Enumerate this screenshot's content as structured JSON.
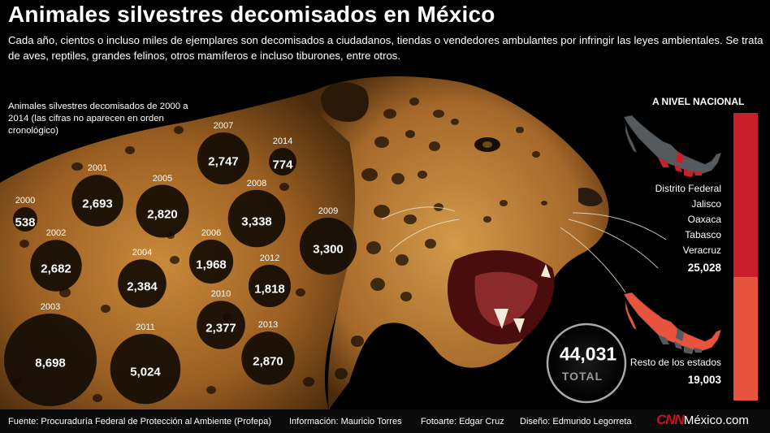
{
  "title": "Animales silvestres decomisados en México",
  "subtitle": "Cada año, cientos o incluso miles de ejemplares son decomisados a ciudadanos, tiendas o vendedores ambulantes por infringir las leyes ambientales. Se trata de aves, reptiles, grandes felinos, otros mamíferos e incluso tiburones, entre otros.",
  "intro": "Animales silvestres decomisados de 2000 a 2014 (las cifras no aparecen en orden cronológico)",
  "chart_data": {
    "type": "bubble",
    "title": "Animales silvestres decomisados de 2000 a 2014 (las cifras no aparecen en orden cronológico)",
    "categories": [
      "2000",
      "2001",
      "2002",
      "2003",
      "2004",
      "2005",
      "2006",
      "2007",
      "2008",
      "2009",
      "2010",
      "2011",
      "2012",
      "2013",
      "2014"
    ],
    "values": [
      538,
      2693,
      2682,
      8698,
      2384,
      2820,
      1968,
      2747,
      3338,
      3300,
      2377,
      5024,
      1818,
      2870,
      774
    ],
    "labels": [
      "538",
      "2,693",
      "2,682",
      "8,698",
      "2,384",
      "2,820",
      "1,968",
      "2,747",
      "3,338",
      "3,300",
      "2,377",
      "5,024",
      "1,818",
      "2,870",
      "774"
    ],
    "total": 44031,
    "total_label": "44,031",
    "total_caption": "TOTAL"
  },
  "national": {
    "heading": "A NIVEL NACIONAL",
    "top_states": [
      "Distrito Federal",
      "Jalisco",
      "Oaxaca",
      "Tabasco",
      "Veracruz"
    ],
    "top_sum": 25028,
    "top_sum_label": "25,028",
    "rest_label": "Resto de los estados",
    "rest_sum": 19003,
    "rest_sum_label": "19,003",
    "colors": {
      "top": "#c8202a",
      "rest": "#e8533e",
      "map_gray": "#555a5e"
    }
  },
  "footer": {
    "source": "Fuente: Procuraduría Federal de Protección al Ambiente (Profepa)",
    "info": "Información: Mauricio Torres",
    "photo": "Fotoarte: Edgar Cruz",
    "design": "Diseño: Edmundo Legorreta",
    "brand_cnn": "CNN",
    "brand_rest": "México.com"
  }
}
